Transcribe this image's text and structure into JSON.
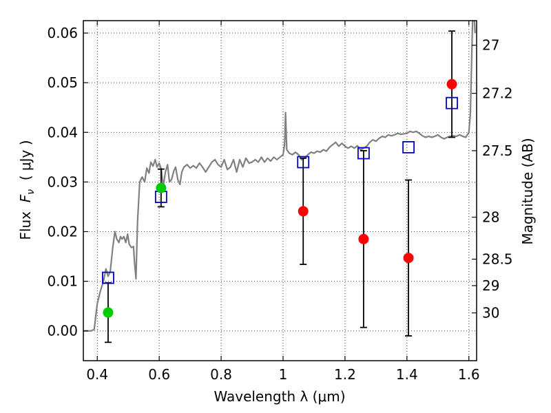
{
  "chart_data": {
    "type": "scatter",
    "xlabel": "Wavelength  λ (μm)",
    "ylabel": "Flux  F_ν  ( μJy )",
    "ylabel_parts": {
      "pre": "Flux  ",
      "sym": "F",
      "sub": "ν",
      "post": "  ( μJy )"
    },
    "y2label": "Magnitude (AB)",
    "xlim": [
      0.355,
      1.625
    ],
    "ylim": [
      -0.006,
      0.0625
    ],
    "grid": true,
    "x_ticks": [
      {
        "value": 0.4,
        "label": "0.4"
      },
      {
        "value": 0.6,
        "label": "0.6"
      },
      {
        "value": 0.8,
        "label": "0.8"
      },
      {
        "value": 1.0,
        "label": "1"
      },
      {
        "value": 1.2,
        "label": "1.2"
      },
      {
        "value": 1.4,
        "label": "1.4"
      },
      {
        "value": 1.6,
        "label": "1.6"
      }
    ],
    "y_ticks": [
      {
        "value": 0.0,
        "label": "0.00"
      },
      {
        "value": 0.01,
        "label": "0.01"
      },
      {
        "value": 0.02,
        "label": "0.02"
      },
      {
        "value": 0.03,
        "label": "0.03"
      },
      {
        "value": 0.04,
        "label": "0.04"
      },
      {
        "value": 0.05,
        "label": "0.05"
      },
      {
        "value": 0.06,
        "label": "0.06"
      }
    ],
    "mag_ticks": [
      27,
      27.2,
      27.5,
      28,
      28.5,
      29,
      30
    ],
    "mag_zero_point": 23.9,
    "observed_points": [
      {
        "x": 0.435,
        "y": 0.0037,
        "yerr_lo": 0.006,
        "yerr_hi": 0.006,
        "color": "#00cc00"
      },
      {
        "x": 0.606,
        "y": 0.0288,
        "yerr_lo": 0.0038,
        "yerr_hi": 0.0038,
        "color": "#00cc00"
      },
      {
        "x": 1.065,
        "y": 0.0241,
        "yerr_lo": 0.0107,
        "yerr_hi": 0.0107,
        "color": "#ff0000"
      },
      {
        "x": 1.26,
        "y": 0.0185,
        "yerr_lo": 0.0178,
        "yerr_hi": 0.0178,
        "color": "#ff0000"
      },
      {
        "x": 1.405,
        "y": 0.0147,
        "yerr_lo": 0.0157,
        "yerr_hi": 0.0157,
        "color": "#ff0000"
      },
      {
        "x": 1.545,
        "y": 0.0497,
        "yerr_lo": 0.0107,
        "yerr_hi": 0.0107,
        "color": "#ff0000"
      }
    ],
    "model_points": [
      {
        "x": 0.435,
        "y": 0.0107
      },
      {
        "x": 0.606,
        "y": 0.027
      },
      {
        "x": 1.065,
        "y": 0.034
      },
      {
        "x": 1.26,
        "y": 0.0358
      },
      {
        "x": 1.405,
        "y": 0.037
      },
      {
        "x": 1.545,
        "y": 0.0459
      }
    ],
    "model_marker_color": "#0000cc",
    "sed_color": "#808080",
    "sed": [
      [
        0.355,
        0.0
      ],
      [
        0.38,
        0.0
      ],
      [
        0.39,
        0.0003
      ],
      [
        0.4,
        0.0055
      ],
      [
        0.41,
        0.008
      ],
      [
        0.42,
        0.01
      ],
      [
        0.428,
        0.0125
      ],
      [
        0.435,
        0.011
      ],
      [
        0.442,
        0.012
      ],
      [
        0.45,
        0.0168
      ],
      [
        0.457,
        0.02
      ],
      [
        0.463,
        0.0185
      ],
      [
        0.47,
        0.0178
      ],
      [
        0.475,
        0.019
      ],
      [
        0.48,
        0.0185
      ],
      [
        0.486,
        0.019
      ],
      [
        0.492,
        0.0178
      ],
      [
        0.498,
        0.0195
      ],
      [
        0.503,
        0.0175
      ],
      [
        0.51,
        0.0168
      ],
      [
        0.517,
        0.017
      ],
      [
        0.52,
        0.014
      ],
      [
        0.525,
        0.0105
      ],
      [
        0.53,
        0.022
      ],
      [
        0.537,
        0.03
      ],
      [
        0.545,
        0.031
      ],
      [
        0.553,
        0.03
      ],
      [
        0.56,
        0.0328
      ],
      [
        0.567,
        0.0318
      ],
      [
        0.573,
        0.034
      ],
      [
        0.58,
        0.0332
      ],
      [
        0.587,
        0.0345
      ],
      [
        0.593,
        0.033
      ],
      [
        0.6,
        0.0338
      ],
      [
        0.607,
        0.0325
      ],
      [
        0.613,
        0.029
      ],
      [
        0.62,
        0.032
      ],
      [
        0.627,
        0.0335
      ],
      [
        0.633,
        0.03
      ],
      [
        0.64,
        0.0305
      ],
      [
        0.647,
        0.0322
      ],
      [
        0.653,
        0.033
      ],
      [
        0.66,
        0.0305
      ],
      [
        0.667,
        0.0295
      ],
      [
        0.673,
        0.032
      ],
      [
        0.68,
        0.033
      ],
      [
        0.69,
        0.0335
      ],
      [
        0.7,
        0.0328
      ],
      [
        0.71,
        0.0333
      ],
      [
        0.72,
        0.0328
      ],
      [
        0.73,
        0.0338
      ],
      [
        0.74,
        0.033
      ],
      [
        0.75,
        0.032
      ],
      [
        0.76,
        0.033
      ],
      [
        0.77,
        0.034
      ],
      [
        0.78,
        0.0345
      ],
      [
        0.79,
        0.0335
      ],
      [
        0.8,
        0.033
      ],
      [
        0.81,
        0.0345
      ],
      [
        0.82,
        0.0325
      ],
      [
        0.83,
        0.033
      ],
      [
        0.84,
        0.0345
      ],
      [
        0.85,
        0.032
      ],
      [
        0.86,
        0.0345
      ],
      [
        0.87,
        0.033
      ],
      [
        0.88,
        0.0348
      ],
      [
        0.89,
        0.0338
      ],
      [
        0.9,
        0.034
      ],
      [
        0.91,
        0.0345
      ],
      [
        0.92,
        0.034
      ],
      [
        0.93,
        0.035
      ],
      [
        0.94,
        0.034
      ],
      [
        0.95,
        0.0348
      ],
      [
        0.96,
        0.0342
      ],
      [
        0.97,
        0.035
      ],
      [
        0.98,
        0.0345
      ],
      [
        0.99,
        0.035
      ],
      [
        1.0,
        0.0355
      ],
      [
        1.005,
        0.0375
      ],
      [
        1.008,
        0.044
      ],
      [
        1.012,
        0.0365
      ],
      [
        1.02,
        0.0358
      ],
      [
        1.03,
        0.0355
      ],
      [
        1.04,
        0.036
      ],
      [
        1.05,
        0.0355
      ],
      [
        1.06,
        0.0345
      ],
      [
        1.07,
        0.0348
      ],
      [
        1.08,
        0.0355
      ],
      [
        1.09,
        0.036
      ],
      [
        1.1,
        0.0358
      ],
      [
        1.11,
        0.0362
      ],
      [
        1.12,
        0.036
      ],
      [
        1.13,
        0.0365
      ],
      [
        1.14,
        0.0362
      ],
      [
        1.15,
        0.037
      ],
      [
        1.16,
        0.0375
      ],
      [
        1.17,
        0.038
      ],
      [
        1.18,
        0.0372
      ],
      [
        1.19,
        0.0378
      ],
      [
        1.2,
        0.0372
      ],
      [
        1.21,
        0.0368
      ],
      [
        1.22,
        0.0372
      ],
      [
        1.23,
        0.0368
      ],
      [
        1.24,
        0.0373
      ],
      [
        1.25,
        0.0365
      ],
      [
        1.26,
        0.0368
      ],
      [
        1.27,
        0.0372
      ],
      [
        1.28,
        0.038
      ],
      [
        1.29,
        0.0385
      ],
      [
        1.3,
        0.0382
      ],
      [
        1.31,
        0.0388
      ],
      [
        1.32,
        0.0392
      ],
      [
        1.33,
        0.039
      ],
      [
        1.34,
        0.0395
      ],
      [
        1.35,
        0.0393
      ],
      [
        1.36,
        0.0395
      ],
      [
        1.37,
        0.0398
      ],
      [
        1.38,
        0.0396
      ],
      [
        1.39,
        0.0397
      ],
      [
        1.4,
        0.0398
      ],
      [
        1.41,
        0.0402
      ],
      [
        1.42,
        0.04
      ],
      [
        1.43,
        0.0402
      ],
      [
        1.44,
        0.0398
      ],
      [
        1.45,
        0.0393
      ],
      [
        1.46,
        0.039
      ],
      [
        1.47,
        0.0392
      ],
      [
        1.48,
        0.039
      ],
      [
        1.49,
        0.0392
      ],
      [
        1.5,
        0.0395
      ],
      [
        1.51,
        0.039
      ],
      [
        1.52,
        0.0387
      ],
      [
        1.53,
        0.039
      ],
      [
        1.54,
        0.0392
      ],
      [
        1.55,
        0.0393
      ],
      [
        1.56,
        0.0392
      ],
      [
        1.57,
        0.0395
      ],
      [
        1.58,
        0.0392
      ],
      [
        1.59,
        0.039
      ],
      [
        1.6,
        0.04
      ],
      [
        1.605,
        0.044
      ],
      [
        1.608,
        0.052
      ],
      [
        1.612,
        0.0625
      ],
      [
        1.618,
        0.0625
      ],
      [
        1.62,
        0.06
      ]
    ]
  }
}
